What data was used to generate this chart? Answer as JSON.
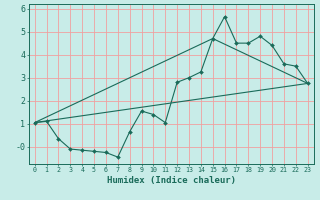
{
  "xlabel": "Humidex (Indice chaleur)",
  "bg_color": "#c8ece8",
  "line_color": "#1a6b5a",
  "grid_color": "#f0a0a0",
  "xlim": [
    -0.5,
    23.5
  ],
  "ylim": [
    -0.75,
    6.2
  ],
  "yticks": [
    0,
    1,
    2,
    3,
    4,
    5,
    6
  ],
  "ytick_labels": [
    "-0",
    "1",
    "2",
    "3",
    "4",
    "5",
    "6"
  ],
  "xticks": [
    0,
    1,
    2,
    3,
    4,
    5,
    6,
    7,
    8,
    9,
    10,
    11,
    12,
    13,
    14,
    15,
    16,
    17,
    18,
    19,
    20,
    21,
    22,
    23
  ],
  "series1_x": [
    0,
    1,
    2,
    3,
    4,
    5,
    6,
    7,
    8,
    9,
    10,
    11,
    12,
    13,
    14,
    15,
    16,
    17,
    18,
    19,
    20,
    21,
    22,
    23
  ],
  "series1_y": [
    1.05,
    1.1,
    0.35,
    -0.1,
    -0.15,
    -0.2,
    -0.25,
    -0.45,
    0.65,
    1.55,
    1.4,
    1.05,
    2.8,
    3.0,
    3.25,
    4.7,
    5.65,
    4.5,
    4.5,
    4.8,
    4.4,
    3.6,
    3.5,
    2.75
  ],
  "series2_x": [
    0,
    23
  ],
  "series2_y": [
    1.05,
    2.75
  ],
  "series3_x": [
    0,
    15,
    23
  ],
  "series3_y": [
    1.05,
    4.7,
    2.75
  ]
}
